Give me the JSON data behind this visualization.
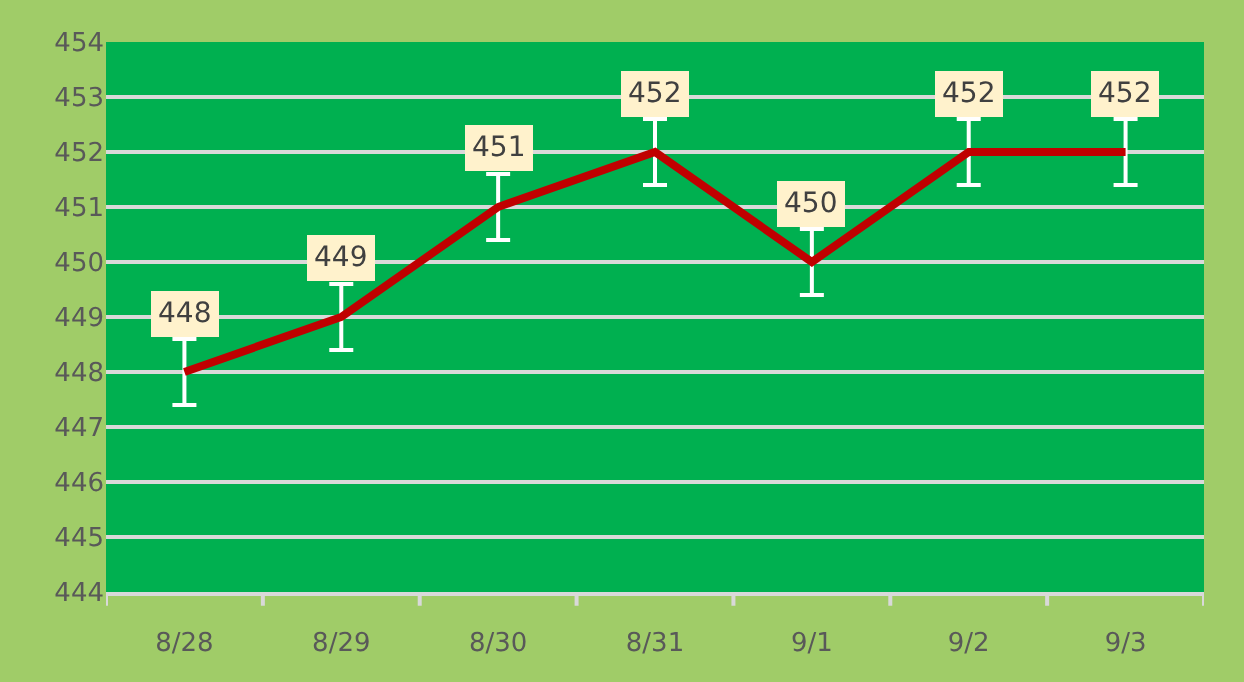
{
  "chart_data": {
    "type": "line",
    "categories": [
      "8/28",
      "8/29",
      "8/30",
      "8/31",
      "9/1",
      "9/2",
      "9/3"
    ],
    "series": [
      {
        "color": "#c00000",
        "values": [
          448,
          449,
          451,
          452,
          450,
          452,
          452
        ],
        "errors": [
          0.6,
          0.6,
          0.6,
          0.6,
          0.6,
          0.6,
          0.6
        ]
      }
    ],
    "ylim": [
      444,
      454
    ],
    "yticks": [
      444,
      445,
      446,
      447,
      448,
      449,
      450,
      451,
      452,
      453,
      454
    ],
    "grid": "y",
    "data_labels": true,
    "marker": "none",
    "line_style": "solid"
  }
}
